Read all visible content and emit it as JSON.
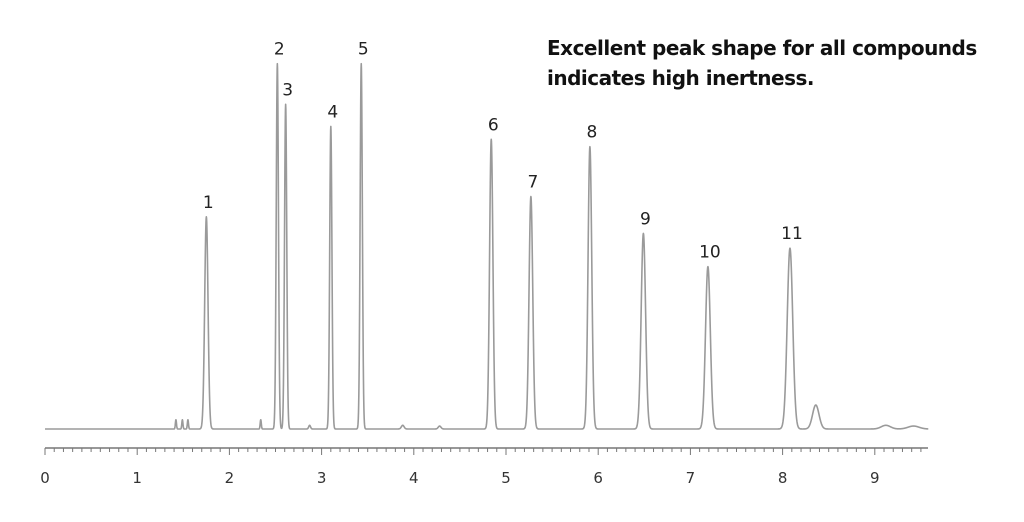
{
  "chart_data": {
    "type": "line",
    "annotation": [
      "Excellent peak shape for all compounds",
      "indicates high inertness."
    ],
    "xlabel": "",
    "ylabel": "",
    "xlim": [
      0,
      9.6
    ],
    "ylim": [
      0,
      100
    ],
    "x_ticks": [
      "0",
      "1",
      "2",
      "3",
      "4",
      "5",
      "6",
      "7",
      "8",
      "9"
    ],
    "grid": false,
    "baseline": 0,
    "peaks": [
      {
        "label": "1",
        "x": 1.75,
        "height": 57.5,
        "width": 0.018
      },
      {
        "label": "2",
        "x": 2.52,
        "height": 99.0,
        "width": 0.012
      },
      {
        "label": "3",
        "x": 2.61,
        "height": 88.0,
        "width": 0.012
      },
      {
        "label": "4",
        "x": 3.1,
        "height": 82.0,
        "width": 0.012
      },
      {
        "label": "5",
        "x": 3.43,
        "height": 99.0,
        "width": 0.012
      },
      {
        "label": "6",
        "x": 4.84,
        "height": 78.5,
        "width": 0.018
      },
      {
        "label": "7",
        "x": 5.27,
        "height": 63.0,
        "width": 0.02
      },
      {
        "label": "8",
        "x": 5.91,
        "height": 76.5,
        "width": 0.02
      },
      {
        "label": "9",
        "x": 6.49,
        "height": 53.0,
        "width": 0.024
      },
      {
        "label": "10",
        "x": 7.19,
        "height": 44.0,
        "width": 0.026
      },
      {
        "label": "11",
        "x": 8.08,
        "height": 49.0,
        "width": 0.03
      }
    ],
    "minor_peaks": [
      {
        "x": 1.42,
        "height": 2.5,
        "width": 0.006
      },
      {
        "x": 1.49,
        "height": 2.5,
        "width": 0.006
      },
      {
        "x": 1.55,
        "height": 2.5,
        "width": 0.006
      },
      {
        "x": 2.34,
        "height": 2.5,
        "width": 0.006
      },
      {
        "x": 2.87,
        "height": 1.0,
        "width": 0.01
      },
      {
        "x": 3.88,
        "height": 1.0,
        "width": 0.015
      },
      {
        "x": 4.28,
        "height": 0.8,
        "width": 0.015
      },
      {
        "x": 8.36,
        "height": 6.5,
        "width": 0.035
      },
      {
        "x": 9.12,
        "height": 1.0,
        "width": 0.05
      },
      {
        "x": 9.42,
        "height": 0.8,
        "width": 0.06
      }
    ],
    "line_color": "#9a9a9a",
    "axis_color": "#777777"
  }
}
